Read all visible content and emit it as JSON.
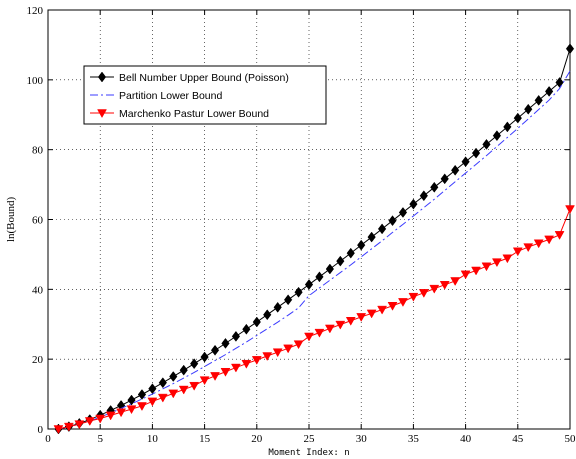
{
  "chart_data": {
    "type": "line",
    "title": "",
    "xlabel": "Moment Index: n",
    "ylabel": "ln(Bound)",
    "xlim": [
      0,
      50
    ],
    "ylim": [
      0,
      120
    ],
    "xticks": [
      0,
      5,
      10,
      15,
      20,
      25,
      30,
      35,
      40,
      45,
      50
    ],
    "yticks": [
      0,
      20,
      40,
      60,
      80,
      100,
      120
    ],
    "grid": true,
    "legend_position": "top-left",
    "series": [
      {
        "name": "Bell Number Upper Bound (Poisson)",
        "color": "#000000",
        "line_style": "solid",
        "marker": "diamond",
        "x": [
          1,
          2,
          3,
          4,
          5,
          6,
          7,
          8,
          9,
          10,
          11,
          12,
          13,
          14,
          15,
          16,
          17,
          18,
          19,
          20,
          21,
          22,
          23,
          24,
          25,
          26,
          27,
          28,
          29,
          30,
          31,
          32,
          33,
          34,
          35,
          36,
          37,
          38,
          39,
          40,
          41,
          42,
          43,
          44,
          45,
          46,
          47,
          48,
          49,
          50
        ],
        "y": [
          0.0,
          0.69,
          1.61,
          2.71,
          3.95,
          5.31,
          6.75,
          8.28,
          9.88,
          11.54,
          13.26,
          15.03,
          16.85,
          18.71,
          20.61,
          22.55,
          24.52,
          26.53,
          28.57,
          30.64,
          32.73,
          34.85,
          37.0,
          39.17,
          41.37,
          43.58,
          45.82,
          48.08,
          50.36,
          52.66,
          54.97,
          57.31,
          59.66,
          62.02,
          64.41,
          66.81,
          69.22,
          71.65,
          74.09,
          76.55,
          79.02,
          81.51,
          84.01,
          86.52,
          89.04,
          91.58,
          94.12,
          96.68,
          99.25,
          108.9
        ]
      },
      {
        "name": "Partition Lower Bound",
        "color": "#3b3bff",
        "line_style": "dashdot",
        "marker": "none",
        "x": [
          1,
          2,
          3,
          4,
          5,
          6,
          7,
          8,
          9,
          10,
          11,
          12,
          13,
          14,
          15,
          16,
          17,
          18,
          19,
          20,
          21,
          22,
          23,
          24,
          25,
          26,
          27,
          28,
          29,
          30,
          31,
          32,
          33,
          34,
          35,
          36,
          37,
          38,
          39,
          40,
          41,
          42,
          43,
          44,
          45,
          46,
          47,
          48,
          49,
          50
        ],
        "y": [
          0.0,
          0.6,
          1.4,
          2.3,
          3.4,
          4.6,
          5.9,
          7.2,
          8.6,
          10.0,
          11.5,
          13.0,
          14.6,
          16.2,
          17.9,
          19.6,
          21.3,
          23.1,
          24.9,
          26.8,
          28.7,
          30.6,
          32.6,
          34.7,
          38.2,
          40.4,
          42.6,
          44.8,
          47.0,
          49.3,
          51.6,
          53.9,
          56.3,
          58.6,
          61.0,
          63.4,
          65.8,
          68.3,
          70.8,
          73.3,
          75.8,
          78.3,
          80.9,
          83.5,
          86.1,
          88.8,
          91.5,
          94.2,
          97.5,
          102.5
        ]
      },
      {
        "name": "Marchenko Pastur Lower Bound",
        "color": "#ff0000",
        "line_style": "solid",
        "marker": "triangle-down",
        "x": [
          1,
          2,
          3,
          4,
          5,
          6,
          7,
          8,
          9,
          10,
          11,
          12,
          13,
          14,
          15,
          16,
          17,
          18,
          19,
          20,
          21,
          22,
          23,
          24,
          25,
          26,
          27,
          28,
          29,
          30,
          31,
          32,
          33,
          34,
          35,
          36,
          37,
          38,
          39,
          40,
          41,
          42,
          43,
          44,
          45,
          46,
          47,
          48,
          49,
          50
        ],
        "y": [
          0.0,
          0.69,
          1.39,
          2.3,
          3.0,
          3.9,
          4.8,
          5.7,
          6.6,
          7.9,
          9.0,
          10.2,
          11.3,
          12.4,
          14.0,
          15.2,
          16.4,
          17.6,
          18.7,
          19.8,
          20.9,
          22.0,
          23.1,
          24.3,
          26.5,
          27.6,
          28.8,
          29.9,
          31.0,
          32.1,
          33.1,
          34.2,
          35.3,
          36.4,
          37.9,
          39.0,
          40.2,
          41.3,
          42.4,
          44.3,
          45.4,
          46.6,
          47.8,
          48.9,
          50.9,
          52.1,
          53.2,
          54.3,
          55.6,
          63.0
        ]
      }
    ]
  }
}
